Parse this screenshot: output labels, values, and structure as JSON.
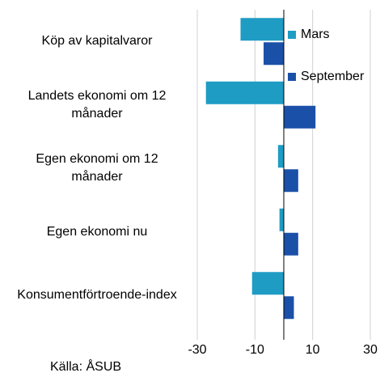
{
  "chart_data": {
    "type": "bar",
    "orientation": "horizontal",
    "categories": [
      "Köp av kapitalvaror",
      "Landets ekonomi om 12 månader",
      "Egen ekonomi om 12 månader",
      "Egen ekonomi nu",
      "Konsumentförtroende-index"
    ],
    "series": [
      {
        "name": "Mars",
        "color": "#1e9cc4",
        "values": [
          -15,
          -27,
          -2,
          -1.5,
          -11
        ]
      },
      {
        "name": "September",
        "color": "#1a50a8",
        "values": [
          -7,
          11,
          5,
          5,
          3.5
        ]
      }
    ],
    "xlim": [
      -30,
      30
    ],
    "xticks": [
      -30,
      -10,
      10,
      30
    ],
    "grid": true,
    "legend": "upper right",
    "source": "Källa: ÅSUB"
  }
}
